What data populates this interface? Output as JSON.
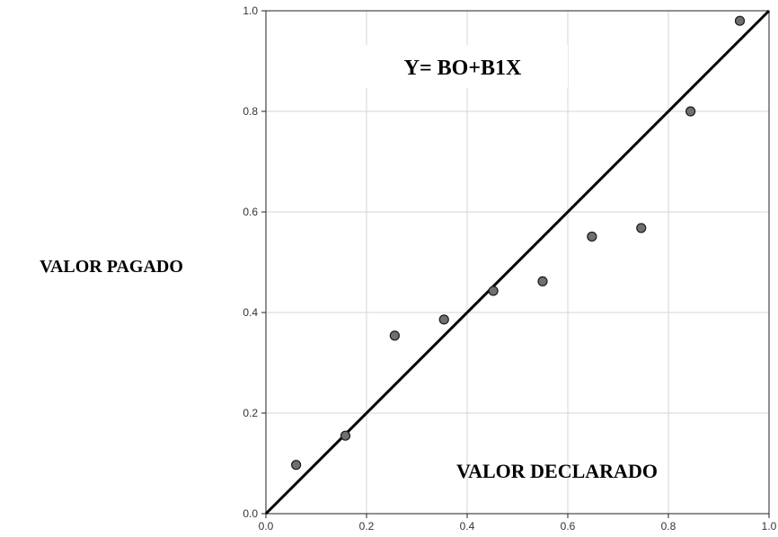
{
  "chart_data": {
    "type": "scatter",
    "title": "",
    "xlabel": "VALOR DECLARADO",
    "ylabel": "VALOR PAGADO",
    "annotation": "Y= BO+B1X",
    "xlim": [
      0.0,
      1.0
    ],
    "ylim": [
      0.0,
      1.0
    ],
    "xticks": [
      "0.0",
      "0.2",
      "0.4",
      "0.6",
      "0.8",
      "1.0"
    ],
    "yticks": [
      "0.0",
      "0.2",
      "0.4",
      "0.6",
      "0.8",
      "1.0"
    ],
    "grid": true,
    "points": [
      {
        "x": 0.06,
        "y": 0.097
      },
      {
        "x": 0.158,
        "y": 0.155
      },
      {
        "x": 0.256,
        "y": 0.354
      },
      {
        "x": 0.354,
        "y": 0.386
      },
      {
        "x": 0.452,
        "y": 0.443
      },
      {
        "x": 0.55,
        "y": 0.462
      },
      {
        "x": 0.648,
        "y": 0.551
      },
      {
        "x": 0.746,
        "y": 0.568
      },
      {
        "x": 0.844,
        "y": 0.8
      },
      {
        "x": 0.942,
        "y": 0.98
      }
    ],
    "reference_line": {
      "from": [
        0.0,
        0.0
      ],
      "to": [
        1.0,
        1.0
      ]
    },
    "colors": {
      "point_fill": "#6f6f6f",
      "point_stroke": "#1a1a1a",
      "line": "#000000",
      "grid": "#d4d4d4",
      "frame": "#222222"
    }
  }
}
